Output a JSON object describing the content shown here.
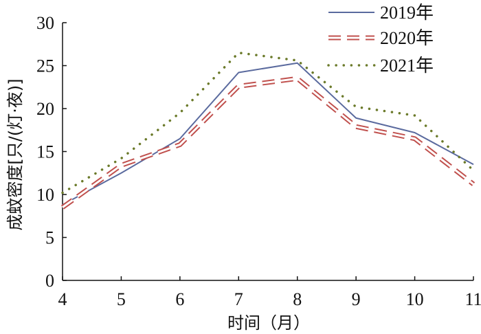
{
  "chart_data": {
    "type": "line",
    "xlabel": "时间（月）",
    "ylabel": "成蚊密度[只/(灯·夜)]",
    "x": [
      4,
      5,
      6,
      7,
      8,
      9,
      10,
      11
    ],
    "xlim": [
      4,
      11
    ],
    "ylim": [
      0,
      30
    ],
    "xticks": [
      "4",
      "5",
      "6",
      "7",
      "8",
      "9",
      "10",
      "11"
    ],
    "yticks": [
      "0",
      "5",
      "10",
      "15",
      "20",
      "25",
      "30"
    ],
    "legend_position": "top-right",
    "grid": false,
    "series": [
      {
        "name": "2019年",
        "style": "solid",
        "color": "#5a6a9e",
        "values": [
          8.8,
          12.5,
          16.5,
          24.2,
          25.3,
          18.9,
          17.2,
          13.5
        ]
      },
      {
        "name": "2020年",
        "style": "dashed",
        "color": "#c0504d",
        "values": [
          8.5,
          13.4,
          15.8,
          22.6,
          23.5,
          17.9,
          16.5,
          11.2
        ]
      },
      {
        "name": "2021年",
        "style": "dotted",
        "color": "#6b7a2a",
        "values": [
          10.2,
          14.2,
          19.5,
          26.5,
          25.6,
          20.2,
          19.2,
          12.8
        ]
      }
    ]
  }
}
